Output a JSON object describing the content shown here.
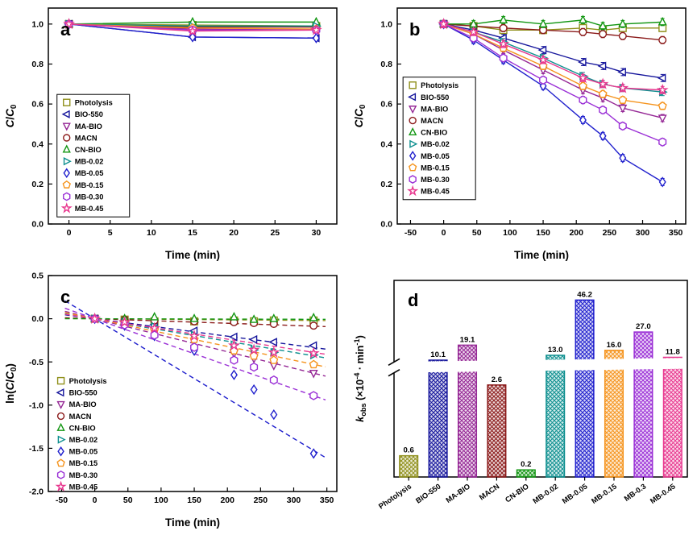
{
  "figure": {
    "background": "#ffffff"
  },
  "series": [
    {
      "name": "Photolysis",
      "color": "#8f8f1a",
      "marker": "square"
    },
    {
      "name": "BIO-550",
      "color": "#16169c",
      "marker": "triangle-left"
    },
    {
      "name": "MA-BIO",
      "color": "#952795",
      "marker": "triangle-down"
    },
    {
      "name": "MACN",
      "color": "#8b1a1a",
      "marker": "circle"
    },
    {
      "name": "CN-BIO",
      "color": "#129612",
      "marker": "triangle-up"
    },
    {
      "name": "MB-0.02",
      "color": "#0d8f8f",
      "marker": "triangle-right"
    },
    {
      "name": "MB-0.05",
      "color": "#2020cd",
      "marker": "diamond"
    },
    {
      "name": "MB-0.15",
      "color": "#f5941e",
      "marker": "pentagon"
    },
    {
      "name": "MB-0.30",
      "color": "#9a2fd6",
      "marker": "hexagon"
    },
    {
      "name": "MB-0.45",
      "color": "#e8388f",
      "marker": "star"
    }
  ],
  "chart_data": [
    {
      "id": "a",
      "type": "line",
      "panel_label": "a",
      "xlabel": "Time (min)",
      "ylabel_parts": [
        {
          "text": "C",
          "italic": true
        },
        {
          "text": "/"
        },
        {
          "text": "C",
          "italic": true
        },
        {
          "text": "0",
          "sub": true
        }
      ],
      "xlim": [
        -2.5,
        32.5
      ],
      "ylim": [
        0,
        1.08
      ],
      "xticks": [
        0,
        5,
        10,
        15,
        20,
        25,
        30
      ],
      "yticks": [
        0.0,
        0.2,
        0.4,
        0.6,
        0.8,
        1.0
      ],
      "xtick_decimals": 0,
      "ytick_decimals": 1,
      "x": [
        0,
        15,
        30
      ],
      "connect": true,
      "series_values": {
        "Photolysis": [
          1.0,
          0.995,
          0.99
        ],
        "BIO-550": [
          1.0,
          0.935,
          0.93
        ],
        "MA-BIO": [
          1.0,
          0.975,
          0.97
        ],
        "MACN": [
          1.0,
          0.985,
          0.985
        ],
        "CN-BIO": [
          1.0,
          1.01,
          1.01
        ],
        "MB-0.02": [
          1.0,
          0.99,
          0.99
        ],
        "MB-0.05": [
          1.0,
          0.935,
          0.93
        ],
        "MB-0.15": [
          1.0,
          0.98,
          0.975
        ],
        "MB-0.30": [
          1.0,
          0.97,
          0.97
        ],
        "MB-0.45": [
          1.0,
          0.965,
          0.97
        ]
      },
      "legend": {
        "fx": 0.03,
        "fy": 0.4,
        "box": true
      }
    },
    {
      "id": "b",
      "type": "line",
      "panel_label": "b",
      "xlabel": "Time (min)",
      "ylabel_parts": [
        {
          "text": "C",
          "italic": true
        },
        {
          "text": "/"
        },
        {
          "text": "C",
          "italic": true
        },
        {
          "text": "0",
          "sub": true
        }
      ],
      "xlim": [
        -70,
        365
      ],
      "ylim": [
        0,
        1.08
      ],
      "xticks": [
        -50,
        0,
        50,
        100,
        150,
        200,
        250,
        300,
        350
      ],
      "yticks": [
        0.0,
        0.2,
        0.4,
        0.6,
        0.8,
        1.0
      ],
      "xtick_decimals": 0,
      "ytick_decimals": 1,
      "x": [
        0,
        45,
        90,
        150,
        210,
        240,
        270,
        330
      ],
      "connect": true,
      "err": 0.018,
      "series_values": {
        "Photolysis": [
          1.0,
          0.99,
          0.97,
          0.97,
          0.98,
          0.97,
          0.98,
          0.98
        ],
        "BIO-550": [
          1.0,
          0.97,
          0.93,
          0.87,
          0.81,
          0.79,
          0.76,
          0.73
        ],
        "MA-BIO": [
          1.0,
          0.95,
          0.87,
          0.77,
          0.67,
          0.63,
          0.58,
          0.53
        ],
        "MACN": [
          1.0,
          0.99,
          0.98,
          0.97,
          0.96,
          0.95,
          0.94,
          0.92
        ],
        "CN-BIO": [
          1.0,
          1.0,
          1.02,
          1.0,
          1.02,
          0.99,
          1.0,
          1.01
        ],
        "MB-0.02": [
          1.0,
          0.96,
          0.91,
          0.83,
          0.74,
          0.7,
          0.68,
          0.66
        ],
        "MB-0.05": [
          1.0,
          0.92,
          0.82,
          0.69,
          0.52,
          0.44,
          0.33,
          0.21
        ],
        "MB-0.15": [
          1.0,
          0.95,
          0.88,
          0.79,
          0.69,
          0.65,
          0.62,
          0.59
        ],
        "MB-0.30": [
          1.0,
          0.93,
          0.83,
          0.72,
          0.62,
          0.57,
          0.49,
          0.41
        ],
        "MB-0.45": [
          1.0,
          0.96,
          0.9,
          0.82,
          0.73,
          0.7,
          0.68,
          0.67
        ]
      },
      "legend": {
        "fx": 0.02,
        "fy": 0.32,
        "box": true
      }
    },
    {
      "id": "c",
      "type": "line",
      "panel_label": "c",
      "xlabel": "Time (min)",
      "ylabel_parts": [
        {
          "text": "ln("
        },
        {
          "text": "C",
          "italic": true
        },
        {
          "text": "/"
        },
        {
          "text": "C",
          "italic": true
        },
        {
          "text": "0",
          "sub": true
        },
        {
          "text": ")"
        }
      ],
      "xlim": [
        -70,
        365
      ],
      "ylim": [
        -2.0,
        0.5
      ],
      "xticks": [
        -50,
        0,
        50,
        100,
        150,
        200,
        250,
        300,
        350
      ],
      "yticks": [
        -2.0,
        -1.5,
        -1.0,
        -0.5,
        0.0,
        0.5
      ],
      "xtick_decimals": 0,
      "ytick_decimals": 1,
      "x": [
        0,
        45,
        90,
        150,
        210,
        240,
        270,
        330
      ],
      "connect": false,
      "fit_slopes": {
        "Photolysis": 0.6,
        "BIO-550": 10.1,
        "MA-BIO": 19.1,
        "MACN": 2.6,
        "CN-BIO": 0.2,
        "MB-0.02": 13.0,
        "MB-0.05": 46.2,
        "MB-0.15": 16.0,
        "MB-0.30": 27.0,
        "MB-0.45": 11.8
      },
      "series_values": {
        "Photolysis": [
          0,
          -0.01,
          -0.03,
          -0.03,
          -0.02,
          -0.03,
          -0.02,
          -0.02
        ],
        "BIO-550": [
          0,
          -0.03,
          -0.07,
          -0.14,
          -0.21,
          -0.24,
          -0.27,
          -0.31
        ],
        "MA-BIO": [
          0,
          -0.05,
          -0.14,
          -0.26,
          -0.4,
          -0.46,
          -0.54,
          -0.63
        ],
        "MACN": [
          0,
          -0.01,
          -0.02,
          -0.03,
          -0.04,
          -0.05,
          -0.06,
          -0.08
        ],
        "CN-BIO": [
          0,
          0.0,
          0.02,
          0.0,
          0.02,
          -0.01,
          0.0,
          0.01
        ],
        "MB-0.02": [
          0,
          -0.04,
          -0.09,
          -0.19,
          -0.3,
          -0.36,
          -0.39,
          -0.42
        ],
        "MB-0.05": [
          0,
          -0.08,
          -0.2,
          -0.37,
          -0.65,
          -0.82,
          -1.11,
          -1.56
        ],
        "MB-0.15": [
          0,
          -0.05,
          -0.13,
          -0.24,
          -0.37,
          -0.43,
          -0.48,
          -0.53
        ],
        "MB-0.30": [
          0,
          -0.07,
          -0.19,
          -0.33,
          -0.48,
          -0.56,
          -0.71,
          -0.89
        ],
        "MB-0.45": [
          0,
          -0.04,
          -0.11,
          -0.2,
          -0.31,
          -0.36,
          -0.39,
          -0.4
        ]
      },
      "legend": {
        "fx": 0.01,
        "fy": 0.45,
        "box": false
      }
    },
    {
      "id": "d",
      "type": "bar",
      "panel_label": "d",
      "ylabel_parts": [
        {
          "text": "k",
          "italic": true
        },
        {
          "text": "obs",
          "sub": true
        },
        {
          "text": " (×10"
        },
        {
          "text": "-4",
          "sup": true
        },
        {
          "text": " · min"
        },
        {
          "text": "-1",
          "sup": true
        },
        {
          "text": ")"
        }
      ],
      "categories": [
        "Photolysis",
        "BIO-550",
        "MA-BIO",
        "MACN",
        "CN-BIO",
        "MB-0.02",
        "MB-0.05",
        "MB-0.15",
        "MB-0.3",
        "MB-0.45"
      ],
      "values": [
        0.6,
        10.1,
        19.1,
        2.6,
        0.2,
        13.0,
        46.2,
        16.0,
        27.0,
        11.8
      ],
      "value_labels": [
        "0.6",
        "10.1",
        "19.1",
        "2.6",
        "0.2",
        "13.0",
        "46.2",
        "16.0",
        "27.0",
        "11.8"
      ],
      "break_band": [
        0.53,
        0.585
      ],
      "scale": {
        "lower_max": 2.95,
        "lower_frac_per_unit": 0.18,
        "upper_min": 9,
        "upper_max": 46.2,
        "upper_frac_min": 0.585,
        "upper_frac_max": 0.9
      }
    }
  ]
}
